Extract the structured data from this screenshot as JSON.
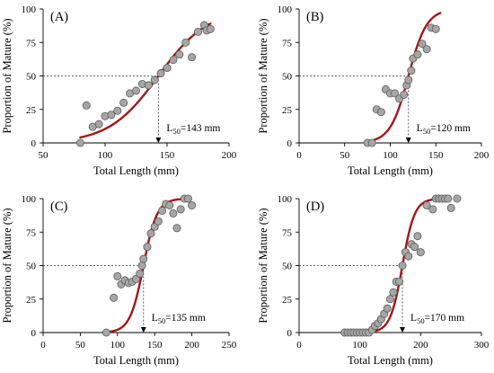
{
  "chart_data": [
    {
      "type": "scatter",
      "panel_label": "(A)",
      "xlabel": "Total Length (mm)",
      "ylabel": "Proportion of Mature (%)",
      "xlim": [
        50,
        200
      ],
      "ylim": [
        0,
        100
      ],
      "xticks": [
        50,
        100,
        150,
        200
      ],
      "yticks": [
        0,
        25,
        50,
        75,
        100
      ],
      "l50": 143,
      "l50_label": {
        "pre": "L",
        "sub": "50",
        "post": "=143 mm"
      },
      "curve": {
        "l50": 143,
        "k": 0.05,
        "x_start": 80,
        "x_end": 185
      },
      "colors": {
        "curve": "#a51515",
        "points": "#a6a6a6",
        "point_edge": "#595959"
      },
      "points": [
        [
          80,
          0
        ],
        [
          85,
          28
        ],
        [
          90,
          12
        ],
        [
          95,
          14
        ],
        [
          100,
          20
        ],
        [
          105,
          21
        ],
        [
          110,
          24
        ],
        [
          115,
          30
        ],
        [
          120,
          37
        ],
        [
          125,
          39
        ],
        [
          130,
          44
        ],
        [
          135,
          43
        ],
        [
          140,
          47
        ],
        [
          145,
          52
        ],
        [
          150,
          56
        ],
        [
          155,
          62
        ],
        [
          160,
          66
        ],
        [
          165,
          75
        ],
        [
          170,
          64
        ],
        [
          175,
          83
        ],
        [
          180,
          88
        ],
        [
          182,
          84
        ],
        [
          185,
          85
        ]
      ]
    },
    {
      "type": "scatter",
      "panel_label": "(B)",
      "xlabel": "Total Length (mm)",
      "ylabel": "Proportion of Mature (%)",
      "xlim": [
        0,
        200
      ],
      "ylim": [
        0,
        100
      ],
      "xticks": [
        0,
        50,
        100,
        150,
        200
      ],
      "yticks": [
        0,
        25,
        50,
        75,
        100
      ],
      "l50": 120,
      "l50_label": {
        "pre": "L",
        "sub": "50",
        "post": "=120 mm"
      },
      "curve": {
        "l50": 120,
        "k": 0.1,
        "x_start": 78,
        "x_end": 155
      },
      "colors": {
        "curve": "#a51515",
        "points": "#a6a6a6",
        "point_edge": "#595959"
      },
      "points": [
        [
          75,
          0
        ],
        [
          80,
          0
        ],
        [
          85,
          25
        ],
        [
          90,
          23
        ],
        [
          95,
          40
        ],
        [
          100,
          37
        ],
        [
          105,
          37
        ],
        [
          110,
          33
        ],
        [
          115,
          36
        ],
        [
          118,
          43
        ],
        [
          120,
          47
        ],
        [
          123,
          54
        ],
        [
          125,
          63
        ],
        [
          130,
          66
        ],
        [
          135,
          74
        ],
        [
          140,
          70
        ],
        [
          145,
          86
        ],
        [
          150,
          85
        ]
      ]
    },
    {
      "type": "scatter",
      "panel_label": "(C)",
      "xlabel": "Total Length (mm)",
      "ylabel": "Proportion of Mature (%)",
      "xlim": [
        0,
        250
      ],
      "ylim": [
        0,
        100
      ],
      "xticks": [
        0,
        50,
        100,
        150,
        200,
        250
      ],
      "yticks": [
        0,
        25,
        50,
        75,
        100
      ],
      "l50": 135,
      "l50_label": {
        "pre": "L",
        "sub": "50",
        "post": "=135 mm"
      },
      "curve": {
        "l50": 135,
        "k": 0.11,
        "x_start": 85,
        "x_end": 198
      },
      "colors": {
        "curve": "#a51515",
        "points": "#a6a6a6",
        "point_edge": "#595959"
      },
      "points": [
        [
          85,
          0
        ],
        [
          95,
          26
        ],
        [
          100,
          42
        ],
        [
          105,
          36
        ],
        [
          110,
          39
        ],
        [
          115,
          37
        ],
        [
          120,
          38
        ],
        [
          125,
          40
        ],
        [
          130,
          44
        ],
        [
          133,
          50
        ],
        [
          135,
          55
        ],
        [
          140,
          64
        ],
        [
          145,
          74
        ],
        [
          150,
          79
        ],
        [
          155,
          83
        ],
        [
          160,
          91
        ],
        [
          165,
          96
        ],
        [
          170,
          95
        ],
        [
          175,
          89
        ],
        [
          180,
          78
        ],
        [
          185,
          92
        ],
        [
          190,
          100
        ],
        [
          195,
          100
        ],
        [
          200,
          95
        ]
      ]
    },
    {
      "type": "scatter",
      "panel_label": "(D)",
      "xlabel": "Total Length (mm)",
      "ylabel": "Proportion of Mature (%)",
      "xlim": [
        0,
        300
      ],
      "ylim": [
        0,
        100
      ],
      "xticks": [
        0,
        100,
        200,
        300
      ],
      "yticks": [
        0,
        25,
        50,
        75,
        100
      ],
      "l50": 170,
      "l50_label": {
        "pre": "L",
        "sub": "50",
        "post": "=170 mm"
      },
      "curve": {
        "l50": 170,
        "k": 0.1,
        "x_start": 100,
        "x_end": 240
      },
      "colors": {
        "curve": "#a51515",
        "points": "#a6a6a6",
        "point_edge": "#595959"
      },
      "points": [
        [
          75,
          0
        ],
        [
          80,
          0
        ],
        [
          85,
          0
        ],
        [
          90,
          0
        ],
        [
          95,
          0
        ],
        [
          100,
          0
        ],
        [
          105,
          0
        ],
        [
          110,
          0
        ],
        [
          115,
          0
        ],
        [
          120,
          2
        ],
        [
          125,
          5
        ],
        [
          130,
          7
        ],
        [
          135,
          10
        ],
        [
          140,
          14
        ],
        [
          145,
          18
        ],
        [
          150,
          25
        ],
        [
          155,
          30
        ],
        [
          160,
          38
        ],
        [
          165,
          38
        ],
        [
          170,
          50
        ],
        [
          175,
          60
        ],
        [
          180,
          57
        ],
        [
          185,
          66
        ],
        [
          190,
          64
        ],
        [
          195,
          72
        ],
        [
          200,
          60
        ],
        [
          210,
          95
        ],
        [
          220,
          92
        ],
        [
          225,
          100
        ],
        [
          230,
          100
        ],
        [
          235,
          100
        ],
        [
          240,
          100
        ],
        [
          245,
          100
        ],
        [
          250,
          93
        ],
        [
          260,
          100
        ]
      ]
    }
  ]
}
